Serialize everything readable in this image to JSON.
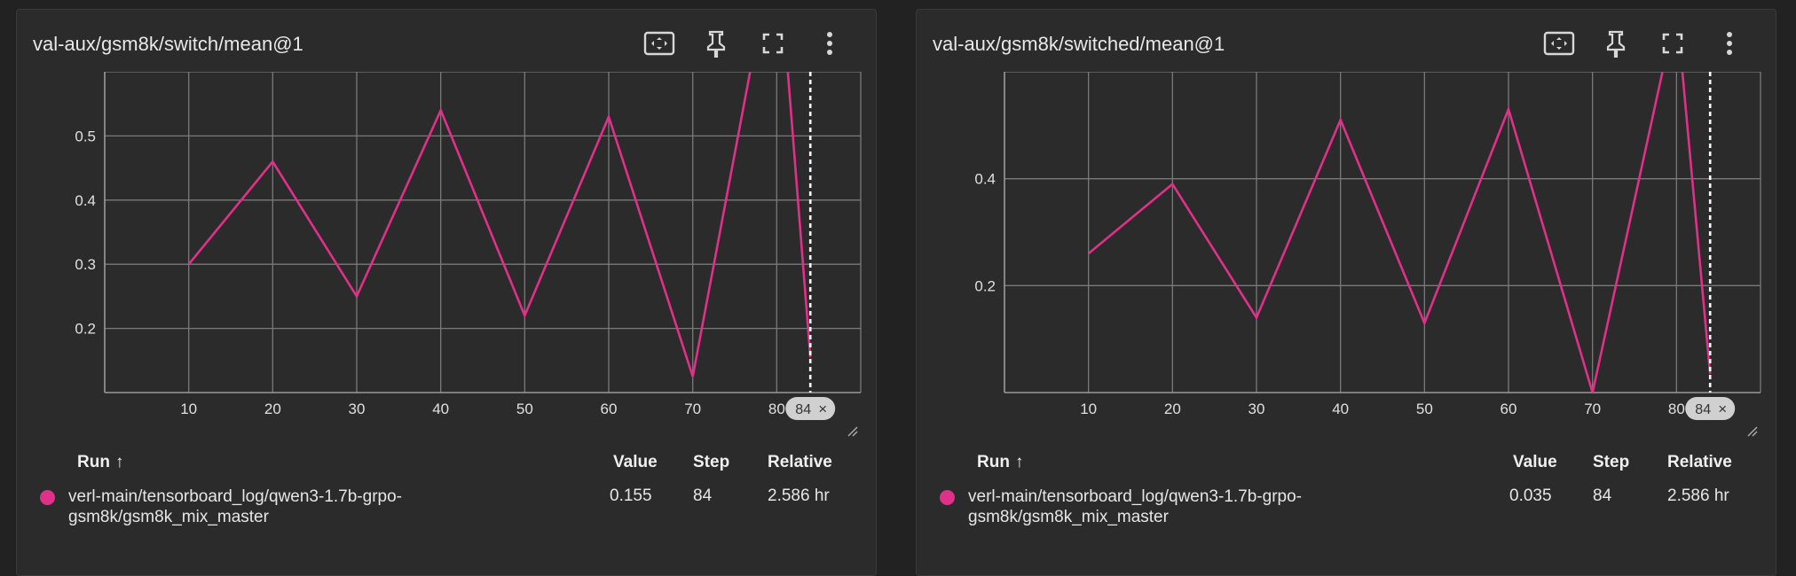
{
  "accent": "#e0308a",
  "cards": [
    {
      "title": "val-aux/gsm8k/switch/mean@1",
      "tools": [
        {
          "icon": "fit-domain-icon"
        },
        {
          "icon": "pin-icon"
        },
        {
          "icon": "fullscreen-icon"
        },
        {
          "icon": "more-vert-icon"
        }
      ],
      "chart_data": {
        "type": "line",
        "x": [
          10,
          20,
          30,
          40,
          50,
          60,
          70,
          80,
          84
        ],
        "series": [
          {
            "values": [
              0.3,
              0.46,
              0.25,
              0.54,
              0.22,
              0.53,
              0.125,
              0.82,
              0.155
            ]
          }
        ],
        "xticks": [
          "10",
          "20",
          "30",
          "40",
          "50",
          "60",
          "70",
          "80"
        ],
        "yticks": [
          "0.2",
          "0.3",
          "0.4",
          "0.5"
        ],
        "xlim": [
          0,
          90
        ],
        "ylim": [
          0.1,
          0.6
        ],
        "cursor_step": "84",
        "cursor_close": "×",
        "grid": true,
        "xlabel": "",
        "ylabel": ""
      },
      "runs_table": {
        "headers": {
          "run": "Run",
          "sort": "↑",
          "value": "Value",
          "step": "Step",
          "relative": "Relative"
        },
        "rows": [
          {
            "name": "verl-main/tensorboard_log/qwen3-1.7b-grpo-gsm8k/gsm8k_mix_master",
            "value": "0.155",
            "step": "84",
            "relative": "2.586 hr"
          }
        ]
      }
    },
    {
      "title": "val-aux/gsm8k/switched/mean@1",
      "tools": [
        {
          "icon": "fit-domain-icon"
        },
        {
          "icon": "pin-icon"
        },
        {
          "icon": "fullscreen-icon"
        },
        {
          "icon": "more-vert-icon"
        }
      ],
      "chart_data": {
        "type": "line",
        "x": [
          10,
          20,
          30,
          40,
          50,
          60,
          70,
          80,
          84
        ],
        "series": [
          {
            "values": [
              0.26,
              0.39,
              0.14,
              0.51,
              0.13,
              0.53,
              0.0,
              0.72,
              0.035
            ]
          }
        ],
        "xticks": [
          "10",
          "20",
          "30",
          "40",
          "50",
          "60",
          "70",
          "80"
        ],
        "yticks": [
          "0.2",
          "0.4"
        ],
        "xlim": [
          0,
          90
        ],
        "ylim": [
          0.0,
          0.6
        ],
        "cursor_step": "84",
        "cursor_close": "×",
        "grid": true,
        "xlabel": "",
        "ylabel": ""
      },
      "runs_table": {
        "headers": {
          "run": "Run",
          "sort": "↑",
          "value": "Value",
          "step": "Step",
          "relative": "Relative"
        },
        "rows": [
          {
            "name": "verl-main/tensorboard_log/qwen3-1.7b-grpo-gsm8k/gsm8k_mix_master",
            "value": "0.035",
            "step": "84",
            "relative": "2.586 hr"
          }
        ]
      }
    }
  ]
}
